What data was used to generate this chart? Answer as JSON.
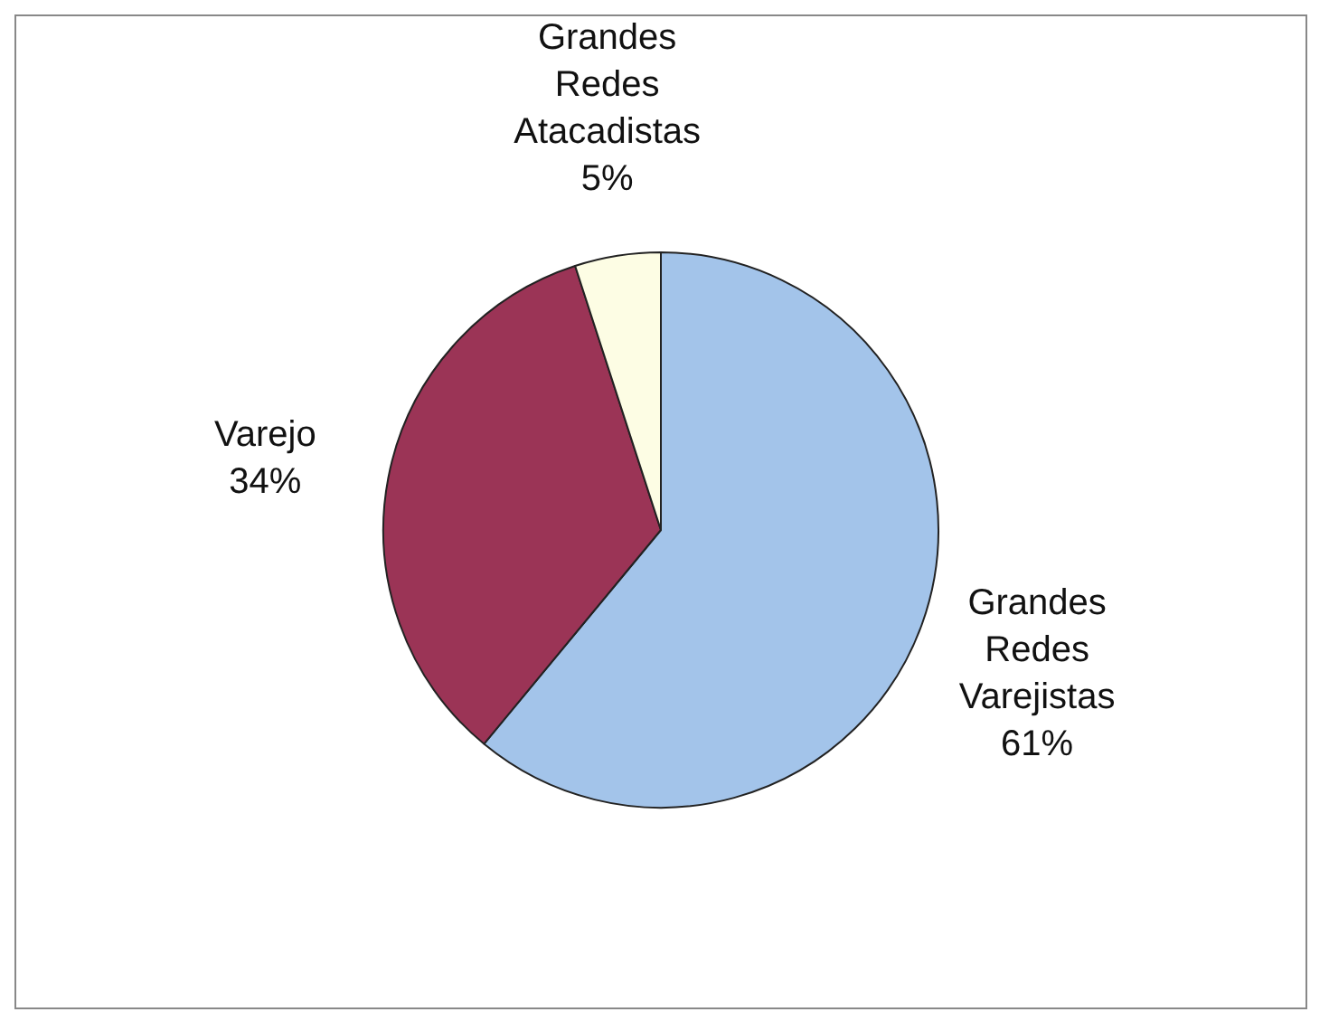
{
  "chart_data": {
    "type": "pie",
    "categories": [
      "Grandes Redes Varejistas",
      "Varejo",
      "Grandes Redes Atacadistas"
    ],
    "values": [
      61,
      34,
      5
    ],
    "colors": [
      "#a3c4ea",
      "#9b3456",
      "#fdfde4"
    ],
    "value_labels": [
      "61%",
      "34%",
      "5%"
    ],
    "legend": false
  }
}
